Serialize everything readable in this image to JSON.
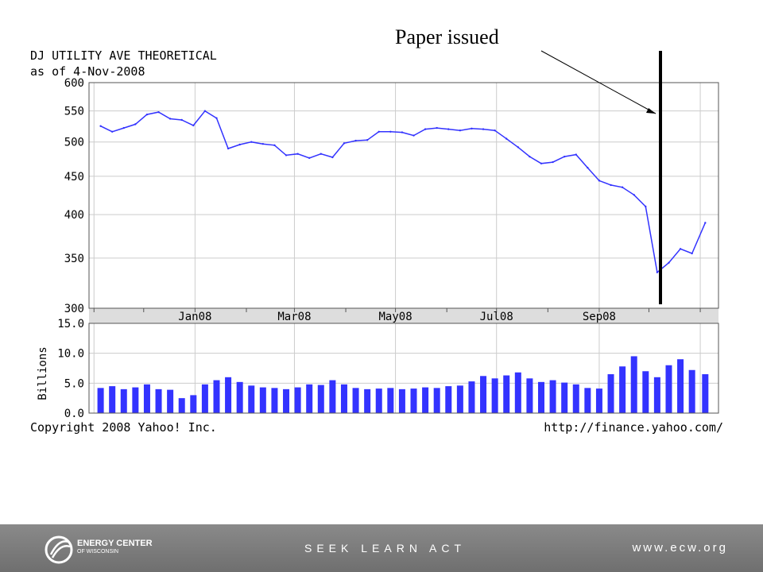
{
  "chart": {
    "title": "DJ UTILITY AVE THEORETICAL",
    "subtitle": "as of 4-Nov-2008",
    "copyright": "Copyright 2008 Yahoo! Inc.",
    "source_url": "http://finance.yahoo.com/"
  },
  "annotation": {
    "text": "Paper issued"
  },
  "footer": {
    "org_name": "ENERGY CENTER",
    "org_sub": "OF WISCONSIN",
    "tagline": "SEEK LEARN ACT",
    "url": "www.ecw.org",
    "colors": {
      "background": "#7a7a7a",
      "text": "#ffffff"
    }
  },
  "colors": {
    "price_line": "#3333ff",
    "volume_bars": "#3333ff",
    "grid": "#cccccc",
    "axis_band": "#dddddd"
  },
  "chart_data": [
    {
      "type": "line",
      "title": "DJ UTILITY AVE THEORETICAL",
      "subtitle": "as of 4-Nov-2008",
      "x_tick_labels": [
        "Jan08",
        "Mar08",
        "May08",
        "Jul08",
        "Sep08"
      ],
      "y_tick_labels": [
        "300",
        "350",
        "400",
        "450",
        "500",
        "550",
        "600"
      ],
      "y_ticks": [
        300,
        350,
        400,
        450,
        500,
        550,
        600
      ],
      "ylim": [
        300,
        600
      ],
      "y_scale": "log",
      "grid": true,
      "series": [
        {
          "x": [
            "2007-11-05",
            "2007-11-12",
            "2007-11-19",
            "2007-11-26",
            "2007-12-03",
            "2007-12-10",
            "2007-12-17",
            "2007-12-24",
            "2007-12-31",
            "2008-01-07",
            "2008-01-14",
            "2008-01-21",
            "2008-01-28",
            "2008-02-04",
            "2008-02-11",
            "2008-02-18",
            "2008-02-25",
            "2008-03-03",
            "2008-03-10",
            "2008-03-17",
            "2008-03-24",
            "2008-03-31",
            "2008-04-07",
            "2008-04-14",
            "2008-04-21",
            "2008-04-28",
            "2008-05-05",
            "2008-05-12",
            "2008-05-19",
            "2008-05-26",
            "2008-06-02",
            "2008-06-09",
            "2008-06-16",
            "2008-06-23",
            "2008-06-30",
            "2008-07-07",
            "2008-07-14",
            "2008-07-21",
            "2008-07-28",
            "2008-08-04",
            "2008-08-11",
            "2008-08-18",
            "2008-08-25",
            "2008-09-01",
            "2008-09-08",
            "2008-09-15",
            "2008-09-22",
            "2008-09-29",
            "2008-10-06",
            "2008-10-13",
            "2008-10-20",
            "2008-10-27",
            "2008-11-04"
          ],
          "values": [
            525,
            516,
            522,
            528,
            544,
            548,
            537,
            535,
            526,
            550,
            538,
            490,
            496,
            500,
            497,
            495,
            480,
            482,
            476,
            482,
            477,
            498,
            502,
            503,
            516,
            516,
            515,
            510,
            520,
            522,
            520,
            518,
            521,
            520,
            518,
            505,
            492,
            478,
            468,
            470,
            478,
            481,
            462,
            444,
            438,
            435,
            425,
            410,
            335,
            345,
            360,
            355,
            390
          ]
        }
      ]
    },
    {
      "type": "bar",
      "ylabel": "Billions",
      "y_tick_labels": [
        "0.0",
        "5.0",
        "10.0",
        "15.0"
      ],
      "y_ticks": [
        0,
        5,
        10,
        15
      ],
      "ylim": [
        0,
        15
      ],
      "grid": true,
      "series": [
        {
          "x": [
            "2007-11-05",
            "2007-11-12",
            "2007-11-19",
            "2007-11-26",
            "2007-12-03",
            "2007-12-10",
            "2007-12-17",
            "2007-12-24",
            "2007-12-31",
            "2008-01-07",
            "2008-01-14",
            "2008-01-21",
            "2008-01-28",
            "2008-02-04",
            "2008-02-11",
            "2008-02-18",
            "2008-02-25",
            "2008-03-03",
            "2008-03-10",
            "2008-03-17",
            "2008-03-24",
            "2008-03-31",
            "2008-04-07",
            "2008-04-14",
            "2008-04-21",
            "2008-04-28",
            "2008-05-05",
            "2008-05-12",
            "2008-05-19",
            "2008-05-26",
            "2008-06-02",
            "2008-06-09",
            "2008-06-16",
            "2008-06-23",
            "2008-06-30",
            "2008-07-07",
            "2008-07-14",
            "2008-07-21",
            "2008-07-28",
            "2008-08-04",
            "2008-08-11",
            "2008-08-18",
            "2008-08-25",
            "2008-09-01",
            "2008-09-08",
            "2008-09-15",
            "2008-09-22",
            "2008-09-29",
            "2008-10-06",
            "2008-10-13",
            "2008-10-20",
            "2008-10-27",
            "2008-11-04"
          ],
          "values": [
            4.2,
            4.5,
            4.0,
            4.3,
            4.8,
            4.0,
            3.9,
            2.5,
            3.0,
            4.8,
            5.5,
            6.0,
            5.2,
            4.6,
            4.3,
            4.2,
            4.0,
            4.3,
            4.8,
            4.7,
            5.5,
            4.8,
            4.2,
            4.0,
            4.1,
            4.2,
            4.0,
            4.1,
            4.3,
            4.2,
            4.5,
            4.6,
            5.3,
            6.2,
            5.8,
            6.3,
            6.8,
            5.8,
            5.2,
            5.5,
            5.1,
            4.8,
            4.2,
            4.1,
            6.5,
            7.8,
            9.5,
            7.0,
            6.0,
            8.0,
            9.0,
            7.2,
            6.5
          ]
        }
      ]
    }
  ]
}
